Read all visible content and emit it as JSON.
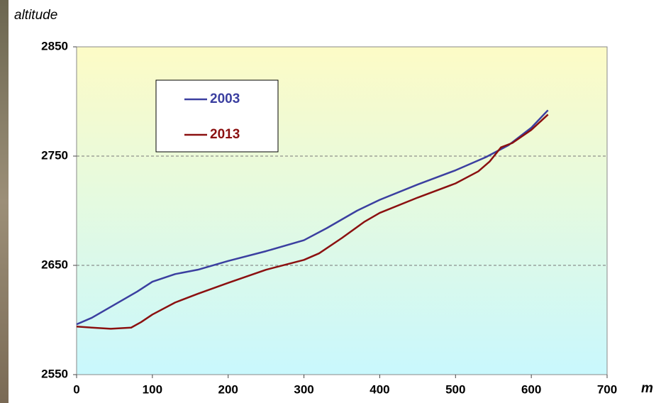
{
  "chart_data": {
    "type": "line",
    "y_label": "altitude",
    "x_label": "m",
    "xlim": [
      0,
      700
    ],
    "xticks": [
      0,
      100,
      200,
      300,
      400,
      500,
      600,
      700
    ],
    "ylim": [
      2550,
      2850
    ],
    "yticks": [
      2550,
      2650,
      2750,
      2850
    ],
    "grid": true,
    "legend": "upper left",
    "series": [
      {
        "name": "2003",
        "color": "#3b3fa0",
        "x": [
          0,
          20,
          50,
          80,
          100,
          130,
          160,
          200,
          250,
          300,
          330,
          370,
          400,
          450,
          500,
          540,
          570,
          600,
          622
        ],
        "values": [
          2596,
          2602,
          2614,
          2626,
          2635,
          2642,
          2646,
          2654,
          2663,
          2673,
          2684,
          2700,
          2710,
          2724,
          2737,
          2749,
          2760,
          2776,
          2792
        ]
      },
      {
        "name": "2013",
        "color": "#8b1010",
        "x": [
          0,
          20,
          45,
          72,
          85,
          100,
          130,
          160,
          200,
          250,
          300,
          320,
          350,
          380,
          400,
          450,
          500,
          530,
          545,
          560,
          575,
          600,
          622
        ],
        "values": [
          2594,
          2593,
          2592,
          2593,
          2598,
          2605,
          2616,
          2624,
          2634,
          2646,
          2655,
          2661,
          2675,
          2690,
          2698,
          2712,
          2725,
          2736,
          2745,
          2758,
          2762,
          2774,
          2788
        ]
      }
    ]
  }
}
